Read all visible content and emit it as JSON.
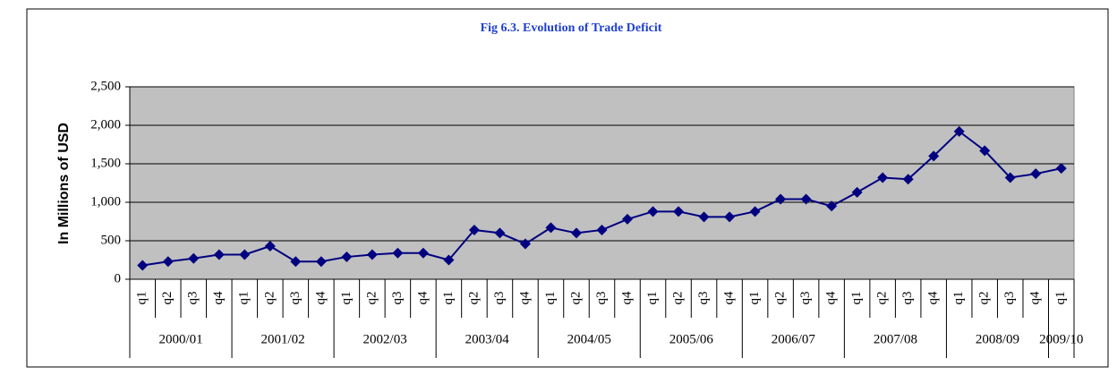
{
  "chart_data": {
    "type": "line",
    "title": "Fig 6.3. Evolution of Trade Deficit",
    "y_label": "In Millions of USD",
    "groups": [
      {
        "name": "2000/01",
        "categories": [
          "q1",
          "q2",
          "q3",
          "q4"
        ]
      },
      {
        "name": "2001/02",
        "categories": [
          "q1",
          "q2",
          "q3",
          "q4"
        ]
      },
      {
        "name": "2002/03",
        "categories": [
          "q1",
          "q2",
          "q3",
          "q4"
        ]
      },
      {
        "name": "2003/04",
        "categories": [
          "q1",
          "q2",
          "q3",
          "q4"
        ]
      },
      {
        "name": "2004/05",
        "categories": [
          "q1",
          "q2",
          "q3",
          "q4"
        ]
      },
      {
        "name": "2005/06",
        "categories": [
          "q1",
          "q2",
          "q3",
          "q4"
        ]
      },
      {
        "name": "2006/07",
        "categories": [
          "q1",
          "q2",
          "q3",
          "q4"
        ]
      },
      {
        "name": "2007/08",
        "categories": [
          "q1",
          "q2",
          "q3",
          "q4"
        ]
      },
      {
        "name": "2008/09",
        "categories": [
          "q1",
          "q2",
          "q3",
          "q4"
        ]
      },
      {
        "name": "2009/10",
        "categories": [
          "q1"
        ]
      }
    ],
    "values": [
      180,
      230,
      270,
      320,
      320,
      430,
      230,
      230,
      290,
      320,
      340,
      340,
      250,
      640,
      600,
      460,
      670,
      600,
      640,
      780,
      880,
      880,
      810,
      810,
      880,
      1040,
      1040,
      950,
      1130,
      1320,
      1300,
      1600,
      1920,
      1670,
      1320,
      1370,
      1440
    ],
    "color": "#000080",
    "ylim": [
      0,
      2500
    ],
    "yticks": [
      0,
      {
        "value": 500,
        "label": "500"
      },
      {
        "value": 1000,
        "label": "1,000"
      },
      {
        "value": 1500,
        "label": "1,500"
      },
      {
        "value": 2000,
        "label": "2,000"
      },
      {
        "value": 2500,
        "label": "2,500"
      }
    ],
    "grid": true
  }
}
